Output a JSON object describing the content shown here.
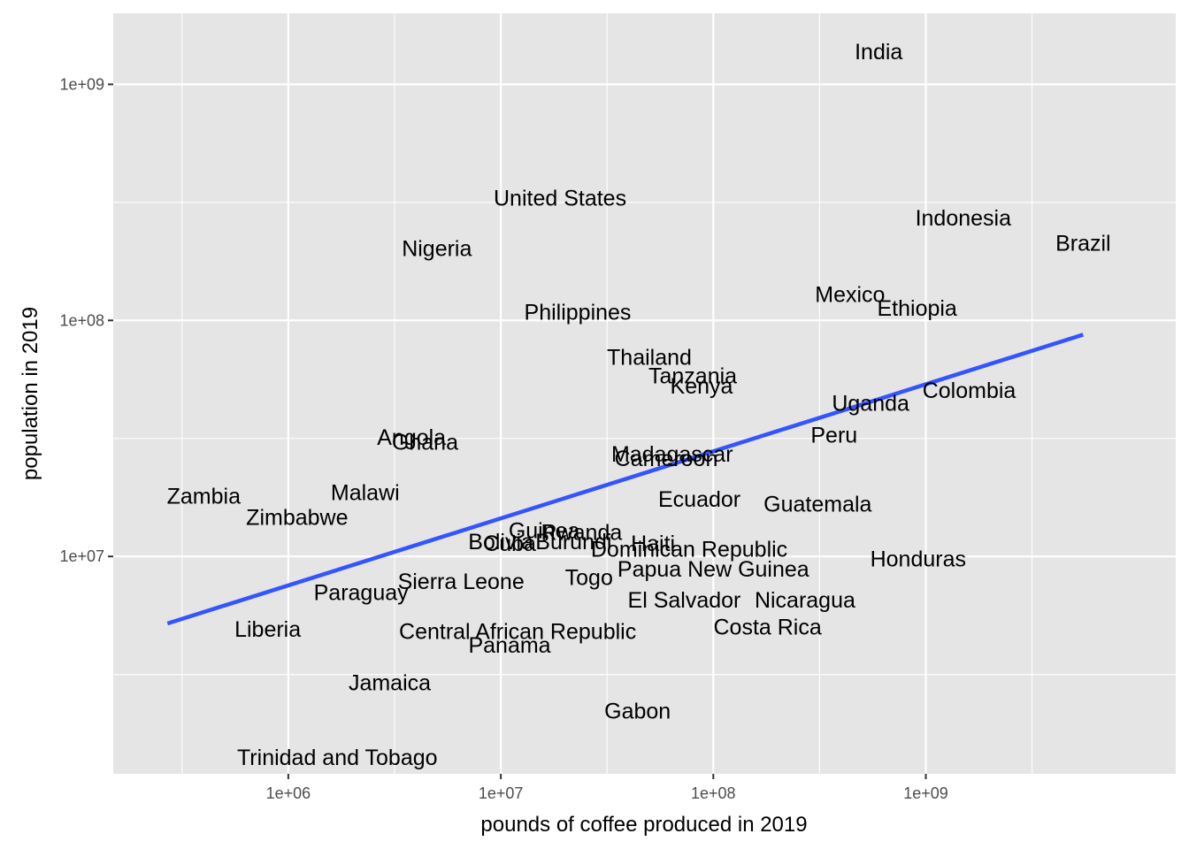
{
  "chart_data": {
    "type": "scatter",
    "mark": "text-labels",
    "title": "",
    "xlabel": "pounds of coffee produced in 2019",
    "ylabel": "population in 2019",
    "x_scale": "log10",
    "y_scale": "log10",
    "xlim": [
      150000.0,
      15000000000.0
    ],
    "ylim": [
      1200000.0,
      2000000000.0
    ],
    "x_ticks": [
      1000000.0,
      10000000.0,
      100000000.0,
      1000000000.0
    ],
    "x_tick_labels": [
      "1e+06",
      "1e+07",
      "1e+08",
      "1e+09"
    ],
    "y_ticks": [
      10000000.0,
      100000000.0,
      1000000000.0
    ],
    "y_tick_labels": [
      "1e+07",
      "1e+08",
      "1e+09"
    ],
    "grid": true,
    "background": "#e5e5e5",
    "grid_color": "#ffffff",
    "trend_color": "#3355ff",
    "points": [
      {
        "label": "India",
        "x": 600000000.0,
        "y": 1370000000.0
      },
      {
        "label": "United States",
        "x": 19000000.0,
        "y": 328000000.0
      },
      {
        "label": "Indonesia",
        "x": 1500000000.0,
        "y": 270000000.0
      },
      {
        "label": "Brazil",
        "x": 5500000000.0,
        "y": 211000000.0
      },
      {
        "label": "Nigeria",
        "x": 5000000.0,
        "y": 201000000.0
      },
      {
        "label": "Mexico",
        "x": 440000000.0,
        "y": 128000000.0
      },
      {
        "label": "Ethiopia",
        "x": 910000000.0,
        "y": 112000000.0
      },
      {
        "label": "Philippines",
        "x": 23000000.0,
        "y": 108000000.0
      },
      {
        "label": "Thailand",
        "x": 50000000.0,
        "y": 69600000.0
      },
      {
        "label": "Tanzania",
        "x": 80000000.0,
        "y": 58000000.0
      },
      {
        "label": "Kenya",
        "x": 88000000.0,
        "y": 52500000.0
      },
      {
        "label": "Colombia",
        "x": 1600000000.0,
        "y": 50300000.0
      },
      {
        "label": "Uganda",
        "x": 550000000.0,
        "y": 44300000.0
      },
      {
        "label": "Peru",
        "x": 370000000.0,
        "y": 32500000.0
      },
      {
        "label": "Angola",
        "x": 3800000.0,
        "y": 31800000.0
      },
      {
        "label": "Ghana",
        "x": 4400000.0,
        "y": 30400000.0
      },
      {
        "label": "Madagascar",
        "x": 64000000.0,
        "y": 27000000.0
      },
      {
        "label": "Cameroon",
        "x": 60000000.0,
        "y": 25900000.0
      },
      {
        "label": "Ecuador",
        "x": 86000000.0,
        "y": 17400000.0
      },
      {
        "label": "Guatemala",
        "x": 310000000.0,
        "y": 16600000.0
      },
      {
        "label": "Malawi",
        "x": 2300000.0,
        "y": 18600000.0
      },
      {
        "label": "Zambia",
        "x": 400000.0,
        "y": 17900000.0
      },
      {
        "label": "Zimbabwe",
        "x": 1100000.0,
        "y": 14600000.0
      },
      {
        "label": "Guinea",
        "x": 16000000.0,
        "y": 12800000.0
      },
      {
        "label": "Rwanda",
        "x": 24000000.0,
        "y": 12600000.0
      },
      {
        "label": "Bolivia",
        "x": 10000000.0,
        "y": 11500000.0
      },
      {
        "label": "Burundi",
        "x": 22000000.0,
        "y": 11500000.0
      },
      {
        "label": "Cuba",
        "x": 11000000.0,
        "y": 11300000.0
      },
      {
        "label": "Dominican Republic",
        "x": 77000000.0,
        "y": 10700000.0
      },
      {
        "label": "Haiti",
        "x": 52000000.0,
        "y": 11300000.0
      },
      {
        "label": "Papua New Guinea",
        "x": 100000000.0,
        "y": 8800000.0
      },
      {
        "label": "Honduras",
        "x": 920000000.0,
        "y": 9700000.0
      },
      {
        "label": "Togo",
        "x": 26000000.0,
        "y": 8100000.0
      },
      {
        "label": "Sierra Leone",
        "x": 6500000.0,
        "y": 7800000.0
      },
      {
        "label": "Paraguay",
        "x": 2200000.0,
        "y": 7000000.0
      },
      {
        "label": "Nicaragua",
        "x": 270000000.0,
        "y": 6500000.0
      },
      {
        "label": "El Salvador",
        "x": 73000000.0,
        "y": 6500000.0
      },
      {
        "label": "Liberia",
        "x": 800000.0,
        "y": 4900000.0
      },
      {
        "label": "Central African Republic",
        "x": 12000000.0,
        "y": 4800000.0
      },
      {
        "label": "Costa Rica",
        "x": 180000000.0,
        "y": 5000000.0
      },
      {
        "label": "Panama",
        "x": 11000000.0,
        "y": 4200000.0
      },
      {
        "label": "Jamaica",
        "x": 3000000.0,
        "y": 2900000.0
      },
      {
        "label": "Gabon",
        "x": 44000000.0,
        "y": 2200000.0
      },
      {
        "label": "Trinidad and Tobago",
        "x": 1700000.0,
        "y": 1400000.0
      }
    ],
    "trend_line": {
      "x": [
        270000.0,
        5500000000.0
      ],
      "y": [
        5200000.0,
        87000000.0
      ]
    }
  }
}
